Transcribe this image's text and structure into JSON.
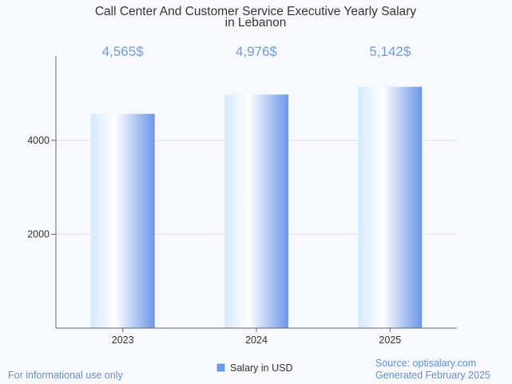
{
  "chart_data": {
    "type": "bar",
    "title": [
      "Call Center And Customer Service Executive Yearly Salary",
      "in Lebanon"
    ],
    "categories": [
      "2023",
      "2024",
      "2025"
    ],
    "series": [
      {
        "name": "Salary in USD",
        "values": [
          4565,
          4976,
          5142
        ],
        "labels": [
          "4,565$",
          "4,976$",
          "5,142$"
        ]
      }
    ],
    "y_ticks": [
      2000,
      4000
    ],
    "ylim": [
      0,
      5800
    ],
    "grid": true,
    "legend": "bottom-center"
  },
  "footer": {
    "disclaimer": "For informational use only",
    "source": "Source: optisalary.com",
    "generated": "Generated February 2025"
  },
  "colors": {
    "bar_light": "#ddeeff",
    "bar_mid": "#ffffff",
    "bar_dark": "#6f9be9",
    "accent": "#6f9be0"
  }
}
